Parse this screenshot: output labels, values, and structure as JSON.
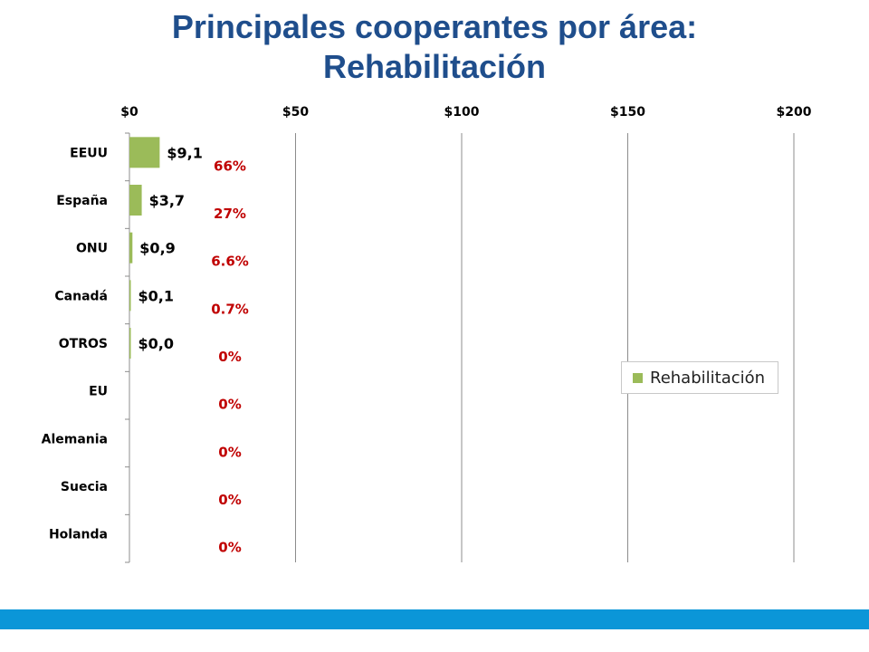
{
  "title": {
    "line1": "Principales cooperantes por área:",
    "line2": "Rehabilitación"
  },
  "colors": {
    "title": "#1f4e8c",
    "bar": "#9bbb59",
    "percent_text": "#c00000",
    "grid": "#8c8c8c",
    "footer_bar": "#0b96d8"
  },
  "legend": {
    "label": "Rehabilitación",
    "placement": "right-middle"
  },
  "chart_data": {
    "type": "bar",
    "orientation": "horizontal",
    "categories": [
      "EEUU",
      "España",
      "ONU",
      "Canadá",
      "OTROS",
      "EU",
      "Alemania",
      "Suecia",
      "Holanda"
    ],
    "series": [
      {
        "name": "Rehabilitación",
        "values": [
          9.1,
          3.7,
          0.9,
          0.1,
          0.0,
          0,
          0,
          0,
          0
        ],
        "value_labels": [
          "$9,1",
          "$3,7",
          "$0,9",
          "$0,1",
          "$0,0",
          "",
          "",
          "",
          ""
        ]
      }
    ],
    "percent_labels": [
      "66%",
      "27%",
      "6.6%",
      "0.7%",
      "0%",
      "0%",
      "0%",
      "0%",
      "0%"
    ],
    "x_ticks": [
      0,
      50,
      100,
      150,
      200
    ],
    "x_tick_labels": [
      "$0",
      "$50",
      "$100",
      "$150",
      "$200"
    ],
    "xlim": [
      0,
      200
    ],
    "x_axis_position": "top",
    "grid": true
  }
}
